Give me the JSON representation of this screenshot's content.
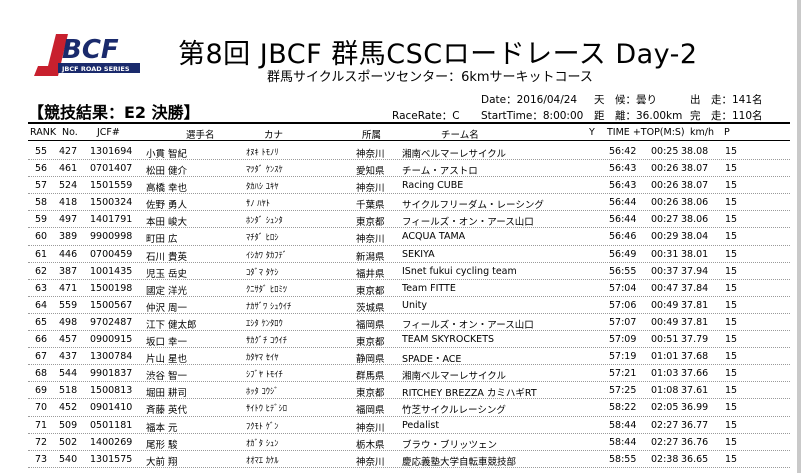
{
  "logo": {
    "text": "JBCF",
    "sub": "JBCF ROAD SERIES"
  },
  "title": "第8回 JBCF 群馬CSCロードレース Day-2",
  "subtitle": "群馬サイクルスポーツセンター：6kmサーキットコース",
  "result_heading": "【競技結果：E2 決勝】",
  "race_rate": "RaceRate：C",
  "date": "Date：2016/04/24",
  "start_time": "StartTime：8:00:00",
  "weather": "天　候：曇り",
  "distance": "距　離：36.00km",
  "starters": "出　走：141名",
  "finishers": "完　走：110名",
  "columns": {
    "rank": "RANK",
    "no": "No.",
    "jcf": "JCF#",
    "name": "選手名",
    "kana": "カナ",
    "pref": "所属",
    "team": "チーム名",
    "y": "Y",
    "time": "TIME +TOP(M:S)",
    "speed": "km/h",
    "p": "P"
  },
  "rows": [
    [
      "55",
      "427",
      "1301694",
      "小貫 智紀",
      "ｵﾇｷ ﾄﾓﾉﾘ",
      "神奈川",
      "湘南ベルマーレサイクル",
      "56:42",
      "00:25",
      "38.08",
      "15"
    ],
    [
      "56",
      "461",
      "0701407",
      "松田 健介",
      "ﾏﾂﾀﾞ ｹﾝｽｹ",
      "愛知県",
      "チーム・アストロ",
      "56:43",
      "00:26",
      "38.07",
      "15"
    ],
    [
      "57",
      "524",
      "1501559",
      "高橋 幸也",
      "ﾀｶﾊｼ ﾕｷﾔ",
      "神奈川",
      "Racing CUBE",
      "56:43",
      "00:26",
      "38.07",
      "15"
    ],
    [
      "58",
      "418",
      "1500324",
      "佐野 勇人",
      "ｻﾉ ﾊﾔﾄ",
      "千葉県",
      "サイクルフリーダム・レーシング",
      "56:44",
      "00:26",
      "38.06",
      "15"
    ],
    [
      "59",
      "497",
      "1401791",
      "本田 峻大",
      "ﾎﾝﾀﾞ ｼｭﾝﾀ",
      "東京都",
      "フィールズ・オン・アース山口",
      "56:44",
      "00:27",
      "38.06",
      "15"
    ],
    [
      "60",
      "389",
      "9900998",
      "町田 広",
      "ﾏﾁﾀﾞ ﾋﾛｼ",
      "神奈川",
      "ACQUA TAMA",
      "56:46",
      "00:29",
      "38.04",
      "15"
    ],
    [
      "61",
      "446",
      "0700459",
      "石川 貴英",
      "ｲｼｶﾜ ﾀｶﾌﾃﾞ",
      "新潟県",
      "SEKIYA",
      "56:49",
      "00:31",
      "38.01",
      "15"
    ],
    [
      "62",
      "387",
      "1001435",
      "児玉 岳史",
      "ｺﾀﾞﾏ ﾀｹｼ",
      "福井県",
      "ISnet fukui cycling team",
      "56:55",
      "00:37",
      "37.94",
      "15"
    ],
    [
      "63",
      "471",
      "1500198",
      "國定 洋光",
      "ｸﾆｻﾀﾞ ﾋﾛﾐﾂ",
      "東京都",
      "Team FITTE",
      "57:04",
      "00:47",
      "37.84",
      "15"
    ],
    [
      "64",
      "559",
      "1500567",
      "仲沢 周一",
      "ﾅｶｻﾞﾜ ｼｭｳｲﾁ",
      "茨城県",
      "Unity",
      "57:06",
      "00:49",
      "37.81",
      "15"
    ],
    [
      "65",
      "498",
      "9702487",
      "江下 健太郎",
      "ｴｼﾀ ｹﾝﾀﾛｳ",
      "福岡県",
      "フィールズ・オン・アース山口",
      "57:07",
      "00:49",
      "37.81",
      "15"
    ],
    [
      "66",
      "457",
      "0900915",
      "坂口 幸一",
      "ｻｶｸﾞﾁ ｺｳｲﾁ",
      "東京都",
      "TEAM SKYROCKETS",
      "57:09",
      "00:51",
      "37.79",
      "15"
    ],
    [
      "67",
      "437",
      "1300784",
      "片山 星也",
      "ｶﾀﾔﾏ ｾｲﾔ",
      "静岡県",
      "SPADE・ACE",
      "57:19",
      "01:01",
      "37.68",
      "15"
    ],
    [
      "68",
      "544",
      "9901837",
      "渋谷 智一",
      "ｼﾌﾞﾔ ﾄﾓｲﾁ",
      "群馬県",
      "湘南ベルマーレサイクル",
      "57:21",
      "01:03",
      "37.66",
      "15"
    ],
    [
      "69",
      "518",
      "1500813",
      "堀田 耕司",
      "ﾎｯﾀ ｺｳｼﾞ",
      "東京都",
      "RITCHEY BREZZA カミハギRT",
      "57:25",
      "01:08",
      "37.61",
      "15"
    ],
    [
      "70",
      "452",
      "0901410",
      "斉藤 英代",
      "ｻｲﾄｳ ﾋﾃﾞｼﾛ",
      "福岡県",
      "竹芝サイクルレーシング",
      "58:22",
      "02:05",
      "36.99",
      "15"
    ],
    [
      "71",
      "509",
      "0501181",
      "福本 元",
      "ﾌｸﾓﾄ ｹﾞﾝ",
      "神奈川",
      "Pedalist",
      "58:44",
      "02:27",
      "36.77",
      "15"
    ],
    [
      "72",
      "502",
      "1400269",
      "尾形 駿",
      "ｵｶﾞﾀ ｼｭﾝ",
      "栃木県",
      "ブラウ・ブリッツェン",
      "58:44",
      "02:27",
      "36.76",
      "15"
    ],
    [
      "73",
      "540",
      "1301575",
      "大前 翔",
      "ｵｵﾏｴ ｶｹﾙ",
      "神奈川",
      "慶応義塾大学自転車競技部",
      "58:55",
      "02:38",
      "36.65",
      "15"
    ]
  ]
}
